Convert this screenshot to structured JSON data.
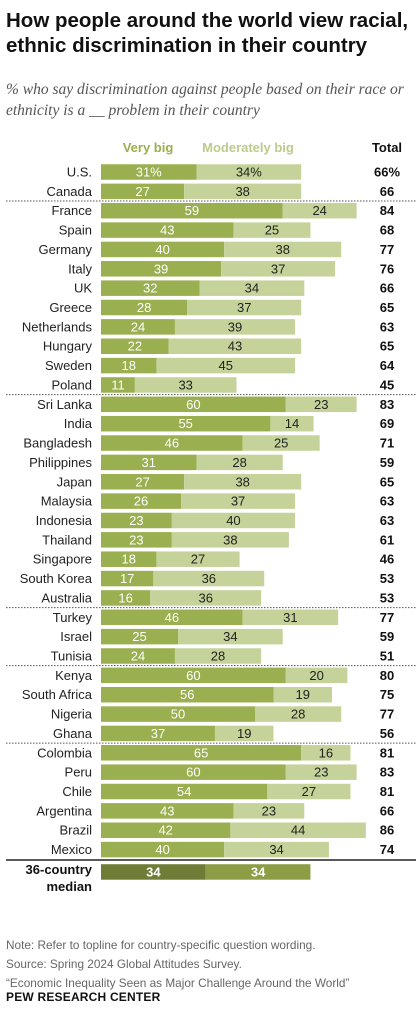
{
  "title": "How people around the world view racial, ethnic discrimination in their country",
  "subtitle": "% who say discrimination against people based on their race or ethnicity is a __ problem in their country",
  "chart_data": {
    "type": "bar",
    "stacked": true,
    "orientation": "horizontal",
    "legend": [
      "Very big",
      "Moderately big"
    ],
    "total_label": "Total",
    "colors": {
      "very_big": "#9aaf4f",
      "moderately_big": "#c5d39a",
      "median_very_big": "#6e7c35",
      "median_moderately_big": "#8d9d45"
    },
    "groups": [
      [
        {
          "country": "U.S.",
          "very_big": "31%",
          "moderately_big": "34%",
          "total": "66%"
        },
        {
          "country": "Canada",
          "very_big": 27,
          "moderately_big": 38,
          "total": 66
        }
      ],
      [
        {
          "country": "France",
          "very_big": 59,
          "moderately_big": 24,
          "total": 84
        },
        {
          "country": "Spain",
          "very_big": 43,
          "moderately_big": 25,
          "total": 68
        },
        {
          "country": "Germany",
          "very_big": 40,
          "moderately_big": 38,
          "total": 77
        },
        {
          "country": "Italy",
          "very_big": 39,
          "moderately_big": 37,
          "total": 76
        },
        {
          "country": "UK",
          "very_big": 32,
          "moderately_big": 34,
          "total": 66
        },
        {
          "country": "Greece",
          "very_big": 28,
          "moderately_big": 37,
          "total": 65
        },
        {
          "country": "Netherlands",
          "very_big": 24,
          "moderately_big": 39,
          "total": 63
        },
        {
          "country": "Hungary",
          "very_big": 22,
          "moderately_big": 43,
          "total": 65
        },
        {
          "country": "Sweden",
          "very_big": 18,
          "moderately_big": 45,
          "total": 64
        },
        {
          "country": "Poland",
          "very_big": 11,
          "moderately_big": 33,
          "total": 45
        }
      ],
      [
        {
          "country": "Sri Lanka",
          "very_big": 60,
          "moderately_big": 23,
          "total": 83
        },
        {
          "country": "India",
          "very_big": 55,
          "moderately_big": 14,
          "total": 69
        },
        {
          "country": "Bangladesh",
          "very_big": 46,
          "moderately_big": 25,
          "total": 71
        },
        {
          "country": "Philippines",
          "very_big": 31,
          "moderately_big": 28,
          "total": 59
        },
        {
          "country": "Japan",
          "very_big": 27,
          "moderately_big": 38,
          "total": 65
        },
        {
          "country": "Malaysia",
          "very_big": 26,
          "moderately_big": 37,
          "total": 63
        },
        {
          "country": "Indonesia",
          "very_big": 23,
          "moderately_big": 40,
          "total": 63
        },
        {
          "country": "Thailand",
          "very_big": 23,
          "moderately_big": 38,
          "total": 61
        },
        {
          "country": "Singapore",
          "very_big": 18,
          "moderately_big": 27,
          "total": 46
        },
        {
          "country": "South Korea",
          "very_big": 17,
          "moderately_big": 36,
          "total": 53
        },
        {
          "country": "Australia",
          "very_big": 16,
          "moderately_big": 36,
          "total": 53
        }
      ],
      [
        {
          "country": "Turkey",
          "very_big": 46,
          "moderately_big": 31,
          "total": 77
        },
        {
          "country": "Israel",
          "very_big": 25,
          "moderately_big": 34,
          "total": 59
        },
        {
          "country": "Tunisia",
          "very_big": 24,
          "moderately_big": 28,
          "total": 51
        }
      ],
      [
        {
          "country": "Kenya",
          "very_big": 60,
          "moderately_big": 20,
          "total": 80
        },
        {
          "country": "South Africa",
          "very_big": 56,
          "moderately_big": 19,
          "total": 75
        },
        {
          "country": "Nigeria",
          "very_big": 50,
          "moderately_big": 28,
          "total": 77
        },
        {
          "country": "Ghana",
          "very_big": 37,
          "moderately_big": 19,
          "total": 56
        }
      ],
      [
        {
          "country": "Colombia",
          "very_big": 65,
          "moderately_big": 16,
          "total": 81
        },
        {
          "country": "Peru",
          "very_big": 60,
          "moderately_big": 23,
          "total": 83
        },
        {
          "country": "Chile",
          "very_big": 54,
          "moderately_big": 27,
          "total": 81
        },
        {
          "country": "Argentina",
          "very_big": 43,
          "moderately_big": 23,
          "total": 66
        },
        {
          "country": "Brazil",
          "very_big": 42,
          "moderately_big": 44,
          "total": 86
        },
        {
          "country": "Mexico",
          "very_big": 40,
          "moderately_big": 34,
          "total": 74
        }
      ]
    ],
    "median": {
      "label_line1": "36-country",
      "label_line2": "median",
      "very_big": 34,
      "moderately_big": 34
    }
  },
  "notes": {
    "note": "Note: Refer to topline for country-specific question wording.",
    "source": "Source: Spring 2024 Global Attitudes Survey.",
    "report": "“Economic Inequality Seen as Major Challenge Around the World”"
  },
  "credit": "PEW RESEARCH CENTER"
}
